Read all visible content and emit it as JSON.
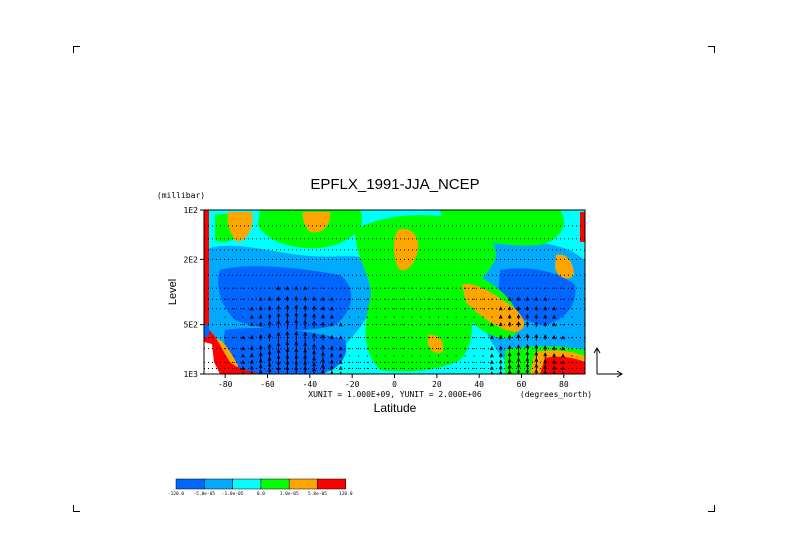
{
  "chart_data": {
    "type": "heatmap",
    "title": "EPFLX_1991-JJA_NCEP",
    "xlabel": "Latitude",
    "ylabel": "Level",
    "yunits": "(millibar)",
    "xunits": "(degrees_north)",
    "xlim": [
      -90,
      90
    ],
    "ylim": [
      1000,
      100
    ],
    "yscale": "log",
    "xticks": [
      -80,
      -60,
      -40,
      -20,
      0,
      20,
      40,
      60,
      80
    ],
    "xtick_labels": [
      "-80",
      "-60",
      "-40",
      "-20",
      "0",
      "20",
      "40",
      "60",
      "80"
    ],
    "yticks": [
      100,
      200,
      500,
      1000
    ],
    "ytick_labels": [
      "1E2",
      "2E2",
      "5E2",
      "1E3"
    ],
    "vector_units": "XUNIT = 1.000E+09, YUNIT = 2.000E+06",
    "colorbar": {
      "levels": [
        "-120.0",
        "-5.0e-05",
        "-1.0e-05",
        "0.0",
        "1.0e-05",
        "5.0e-05",
        "120.0"
      ],
      "colors": [
        "#0066ff",
        "#00aaff",
        "#00ffff",
        "#00ff00",
        "#ffa500",
        "#ff0000"
      ]
    }
  }
}
